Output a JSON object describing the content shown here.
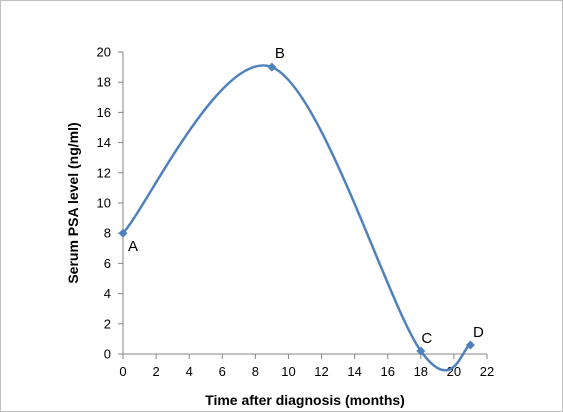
{
  "chart_data": {
    "type": "line",
    "title": "",
    "xlabel": "Time after diagnosis (months)",
    "ylabel": "Serum PSA level (ng/ml)",
    "xlim": [
      0,
      22
    ],
    "ylim": [
      0,
      20
    ],
    "x_ticks": [
      0,
      2,
      4,
      6,
      8,
      10,
      12,
      14,
      16,
      18,
      20,
      22
    ],
    "y_ticks": [
      0,
      2,
      4,
      6,
      8,
      10,
      12,
      14,
      16,
      18,
      20
    ],
    "x_tick_labels": [
      "0",
      "2",
      "4",
      "6",
      "8",
      "10",
      "12",
      "14",
      "16",
      "18",
      "20",
      "22"
    ],
    "y_tick_labels": [
      "0",
      "2",
      "4",
      "6",
      "8",
      "10",
      "12",
      "14",
      "16",
      "18",
      "20"
    ],
    "grid": false,
    "smooth": true,
    "legend": "none",
    "series_color": "#4f81bd",
    "series": [
      {
        "points": [
          {
            "x": 0,
            "y": 8,
            "label": "A"
          },
          {
            "x": 9,
            "y": 19,
            "label": "B"
          },
          {
            "x": 18,
            "y": 0.2,
            "label": "C"
          },
          {
            "x": 21,
            "y": 0.6,
            "label": "D"
          }
        ]
      }
    ]
  }
}
